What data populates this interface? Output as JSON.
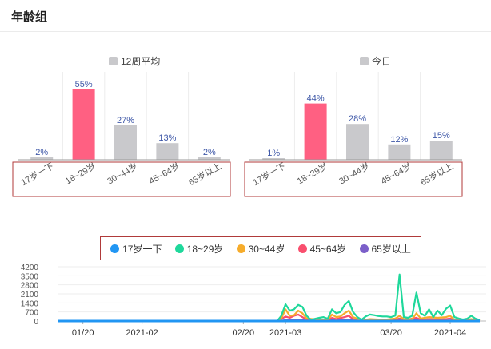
{
  "header": {
    "title": "年龄组"
  },
  "chart_data": [
    {
      "type": "bar",
      "legend": "12周平均",
      "categories": [
        "17岁一下",
        "18~29岁",
        "30~44岁",
        "45~64岁",
        "65岁以上"
      ],
      "values": [
        2,
        55,
        27,
        13,
        2
      ],
      "value_labels": [
        "2%",
        "55%",
        "27%",
        "13%",
        "2%"
      ],
      "ylim": [
        0,
        60
      ],
      "highlight_index": 1,
      "colors": {
        "bar": "#c9c9cc",
        "highlight": "#ff6082",
        "label": "#3f58a8"
      }
    },
    {
      "type": "bar",
      "legend": "今日",
      "categories": [
        "17岁一下",
        "18~29岁",
        "30~44岁",
        "45~64岁",
        "65岁以上"
      ],
      "values": [
        1,
        44,
        28,
        12,
        15
      ],
      "value_labels": [
        "1%",
        "44%",
        "28%",
        "12%",
        "15%"
      ],
      "ylim": [
        0,
        60
      ],
      "highlight_index": 1,
      "colors": {
        "bar": "#c9c9cc",
        "highlight": "#ff6082",
        "label": "#3f58a8"
      }
    },
    {
      "type": "line",
      "x_ticks": [
        "01/20",
        "2021-02",
        "02/20",
        "2021-03",
        "03/20",
        "2021-04"
      ],
      "y_ticks": [
        0,
        700,
        1400,
        2100,
        2800,
        3500,
        4200
      ],
      "ylim": [
        0,
        4200
      ],
      "legend_placement": "top",
      "series": [
        {
          "name": "17岁一下",
          "color": "#2196f3",
          "points": [
            [
              0,
              0
            ],
            [
              100,
              0
            ]
          ]
        },
        {
          "name": "18~29岁",
          "color": "#1fd89b",
          "points": [
            [
              0,
              0
            ],
            [
              52,
              0
            ],
            [
              53,
              400
            ],
            [
              54,
              1300
            ],
            [
              55,
              800
            ],
            [
              56,
              900
            ],
            [
              57,
              1250
            ],
            [
              58,
              1100
            ],
            [
              59,
              400
            ],
            [
              60,
              100
            ],
            [
              62,
              250
            ],
            [
              63,
              300
            ],
            [
              64,
              180
            ],
            [
              65,
              900
            ],
            [
              66,
              600
            ],
            [
              67,
              700
            ],
            [
              68,
              1250
            ],
            [
              69,
              1550
            ],
            [
              70,
              700
            ],
            [
              71,
              300
            ],
            [
              72,
              100
            ],
            [
              73,
              350
            ],
            [
              74,
              500
            ],
            [
              75,
              450
            ],
            [
              76,
              380
            ],
            [
              77,
              350
            ],
            [
              78,
              350
            ],
            [
              79,
              300
            ],
            [
              80,
              420
            ],
            [
              81,
              3600
            ],
            [
              82,
              300
            ],
            [
              83,
              250
            ],
            [
              84,
              400
            ],
            [
              85,
              2200
            ],
            [
              86,
              600
            ],
            [
              87,
              400
            ],
            [
              88,
              900
            ],
            [
              89,
              300
            ],
            [
              90,
              800
            ],
            [
              91,
              450
            ],
            [
              92,
              950
            ],
            [
              93,
              1200
            ],
            [
              94,
              300
            ],
            [
              95,
              200
            ],
            [
              96,
              120
            ],
            [
              97,
              180
            ],
            [
              98,
              400
            ],
            [
              99,
              180
            ],
            [
              100,
              80
            ]
          ]
        },
        {
          "name": "30~44岁",
          "color": "#f6ac2b",
          "points": [
            [
              0,
              0
            ],
            [
              52,
              0
            ],
            [
              53,
              200
            ],
            [
              54,
              900
            ],
            [
              55,
              400
            ],
            [
              56,
              450
            ],
            [
              57,
              800
            ],
            [
              58,
              600
            ],
            [
              59,
              200
            ],
            [
              62,
              100
            ],
            [
              63,
              120
            ],
            [
              64,
              80
            ],
            [
              65,
              500
            ],
            [
              66,
              300
            ],
            [
              67,
              350
            ],
            [
              68,
              600
            ],
            [
              69,
              800
            ],
            [
              70,
              300
            ],
            [
              72,
              60
            ],
            [
              74,
              150
            ],
            [
              76,
              120
            ],
            [
              78,
              120
            ],
            [
              80,
              200
            ],
            [
              81,
              400
            ],
            [
              82,
              150
            ],
            [
              84,
              150
            ],
            [
              85,
              600
            ],
            [
              86,
              200
            ],
            [
              88,
              300
            ],
            [
              90,
              250
            ],
            [
              92,
              300
            ],
            [
              93,
              400
            ],
            [
              94,
              100
            ],
            [
              96,
              60
            ],
            [
              98,
              150
            ],
            [
              100,
              40
            ]
          ]
        },
        {
          "name": "45~64岁",
          "color": "#f94f6e",
          "points": [
            [
              0,
              0
            ],
            [
              52,
              0
            ],
            [
              53,
              150
            ],
            [
              54,
              350
            ],
            [
              55,
              250
            ],
            [
              56,
              400
            ],
            [
              57,
              500
            ],
            [
              58,
              300
            ],
            [
              59,
              100
            ],
            [
              62,
              60
            ],
            [
              64,
              40
            ],
            [
              65,
              250
            ],
            [
              66,
              150
            ],
            [
              68,
              300
            ],
            [
              69,
              400
            ],
            [
              70,
              150
            ],
            [
              72,
              30
            ],
            [
              74,
              80
            ],
            [
              78,
              60
            ],
            [
              80,
              100
            ],
            [
              81,
              200
            ],
            [
              82,
              60
            ],
            [
              85,
              250
            ],
            [
              86,
              100
            ],
            [
              88,
              150
            ],
            [
              90,
              120
            ],
            [
              92,
              150
            ],
            [
              93,
              200
            ],
            [
              94,
              60
            ],
            [
              98,
              80
            ],
            [
              100,
              20
            ]
          ]
        },
        {
          "name": "65岁以上",
          "color": "#7b5fc9",
          "points": [
            [
              0,
              0
            ],
            [
              52,
              0
            ],
            [
              54,
              60
            ],
            [
              57,
              80
            ],
            [
              60,
              20
            ],
            [
              65,
              60
            ],
            [
              69,
              80
            ],
            [
              72,
              20
            ],
            [
              80,
              40
            ],
            [
              81,
              60
            ],
            [
              85,
              60
            ],
            [
              88,
              40
            ],
            [
              93,
              50
            ],
            [
              100,
              10
            ]
          ]
        }
      ]
    }
  ]
}
